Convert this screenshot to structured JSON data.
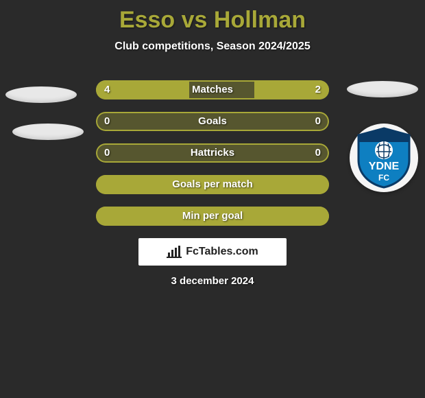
{
  "title": "Esso vs Hollman",
  "subtitle": "Club competitions, Season 2024/2025",
  "bar_colors": {
    "fill": "#a8a838",
    "empty": "rgba(168,168,56,0.35)",
    "border": "#a8a838"
  },
  "background_color": "#2a2a2a",
  "text_color": "#ffffff",
  "rows": [
    {
      "label": "Matches",
      "left_val": "4",
      "right_val": "2",
      "left_pct": 40,
      "right_pct": 32
    },
    {
      "label": "Goals",
      "left_val": "0",
      "right_val": "0",
      "left_pct": 0,
      "right_pct": 0
    },
    {
      "label": "Hattricks",
      "left_val": "0",
      "right_val": "0",
      "left_pct": 0,
      "right_pct": 0
    },
    {
      "label": "Goals per match",
      "left_val": "",
      "right_val": "",
      "left_pct": 100,
      "right_pct": 0
    },
    {
      "label": "Min per goal",
      "left_val": "",
      "right_val": "",
      "left_pct": 100,
      "right_pct": 0
    }
  ],
  "attribution": "FcTables.com",
  "date": "3 december 2024",
  "badge": {
    "name": "sydney-fc-style-crest",
    "primary": "#0e7fc1",
    "secondary": "#0a3a66",
    "accent": "#ffffff",
    "text": "YDNE",
    "subtext": "FC"
  }
}
